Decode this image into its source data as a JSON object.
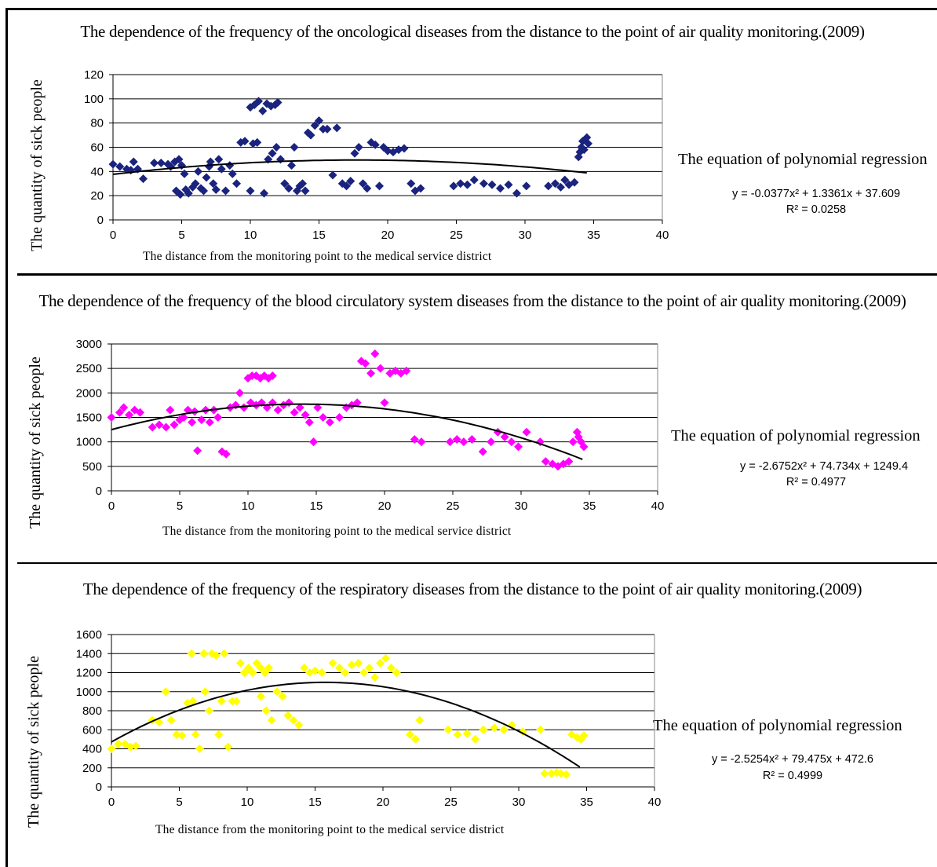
{
  "chart_data": [
    {
      "type": "scatter",
      "title": "The dependence of the frequency of the oncological diseases from the distance to the point of air quality monitoring.(2009)",
      "xlabel": "The distance from the monitoring point to the medical service district",
      "ylabel": "The quantity of sick people",
      "xlim": [
        0,
        40
      ],
      "ylim": [
        0,
        120
      ],
      "xticks": [
        0,
        5,
        10,
        15,
        20,
        25,
        30,
        35,
        40
      ],
      "yticks": [
        0,
        20,
        40,
        60,
        80,
        100,
        120
      ],
      "grid": "horizontal",
      "color": "#1a237e",
      "marker": "diamond",
      "equation_heading": "The equation of polynomial regression",
      "equation": "y = -0.0377x² + 1.3361x + 37.609",
      "r_squared": "R² = 0.0258",
      "trendline": {
        "a": -0.0377,
        "b": 1.3361,
        "c": 37.609,
        "x_range": [
          0,
          34.5
        ]
      },
      "points": [
        [
          0,
          46
        ],
        [
          0.5,
          44
        ],
        [
          1,
          42
        ],
        [
          1.3,
          41
        ],
        [
          1.5,
          48
        ],
        [
          1.8,
          42
        ],
        [
          2.2,
          34
        ],
        [
          3,
          47
        ],
        [
          3.5,
          47
        ],
        [
          4,
          46
        ],
        [
          4.2,
          44
        ],
        [
          4.5,
          48
        ],
        [
          4.8,
          50
        ],
        [
          5,
          45
        ],
        [
          5.2,
          38
        ],
        [
          4.6,
          24
        ],
        [
          4.9,
          21
        ],
        [
          5.3,
          25
        ],
        [
          5.5,
          22
        ],
        [
          5.8,
          27
        ],
        [
          6,
          30
        ],
        [
          6.2,
          40
        ],
        [
          6.4,
          26
        ],
        [
          6.6,
          24
        ],
        [
          6.8,
          35
        ],
        [
          7,
          44
        ],
        [
          7.1,
          48
        ],
        [
          7.3,
          30
        ],
        [
          7.5,
          25
        ],
        [
          7.7,
          50
        ],
        [
          7.9,
          42
        ],
        [
          8.2,
          24
        ],
        [
          8.5,
          45
        ],
        [
          8.7,
          38
        ],
        [
          9,
          30
        ],
        [
          9.3,
          64
        ],
        [
          9.6,
          65
        ],
        [
          10,
          24
        ],
        [
          10.2,
          63
        ],
        [
          10.5,
          64
        ],
        [
          10,
          93
        ],
        [
          10.3,
          95
        ],
        [
          10.6,
          98
        ],
        [
          10.9,
          90
        ],
        [
          11.2,
          96
        ],
        [
          11.5,
          94
        ],
        [
          11.8,
          95
        ],
        [
          12,
          97
        ],
        [
          11,
          22
        ],
        [
          11.3,
          50
        ],
        [
          11.6,
          55
        ],
        [
          11.9,
          60
        ],
        [
          12.2,
          50
        ],
        [
          12.5,
          30
        ],
        [
          12.8,
          26
        ],
        [
          13,
          45
        ],
        [
          13.2,
          60
        ],
        [
          13.4,
          24
        ],
        [
          13.6,
          28
        ],
        [
          13.8,
          30
        ],
        [
          14,
          24
        ],
        [
          14.2,
          72
        ],
        [
          14.4,
          70
        ],
        [
          14.7,
          78
        ],
        [
          15,
          82
        ],
        [
          15.3,
          75
        ],
        [
          15.6,
          75
        ],
        [
          16,
          37
        ],
        [
          16.3,
          76
        ],
        [
          16.7,
          30
        ],
        [
          17,
          28
        ],
        [
          17.3,
          32
        ],
        [
          17.6,
          55
        ],
        [
          17.9,
          60
        ],
        [
          18.2,
          30
        ],
        [
          18.5,
          26
        ],
        [
          18.8,
          64
        ],
        [
          19.1,
          62
        ],
        [
          19.4,
          28
        ],
        [
          19.7,
          60
        ],
        [
          20,
          57
        ],
        [
          20.4,
          56
        ],
        [
          20.8,
          58
        ],
        [
          21.2,
          59
        ],
        [
          21.7,
          30
        ],
        [
          22,
          24
        ],
        [
          22.4,
          26
        ],
        [
          24.8,
          28
        ],
        [
          25.3,
          30
        ],
        [
          25.8,
          29
        ],
        [
          26.3,
          33
        ],
        [
          27,
          30
        ],
        [
          27.6,
          29
        ],
        [
          28.2,
          26
        ],
        [
          28.8,
          29
        ],
        [
          29.4,
          22
        ],
        [
          30.1,
          28
        ],
        [
          31.7,
          28
        ],
        [
          32.2,
          30
        ],
        [
          32.6,
          27
        ],
        [
          32.9,
          33
        ],
        [
          33.2,
          29
        ],
        [
          33.6,
          31
        ],
        [
          33.9,
          52
        ],
        [
          34.1,
          60
        ],
        [
          34.3,
          58
        ],
        [
          34.5,
          68
        ],
        [
          34.2,
          65
        ],
        [
          34.6,
          63
        ],
        [
          34.0,
          56
        ]
      ]
    },
    {
      "type": "scatter",
      "title": "The dependence of the frequency of the blood circulatory system diseases from the distance to the point of air quality monitoring.(2009)",
      "xlabel": "The distance from the monitoring point to the medical service district",
      "ylabel": "The quantity of sick people",
      "xlim": [
        0,
        40
      ],
      "ylim": [
        0,
        3000
      ],
      "xticks": [
        0,
        5,
        10,
        15,
        20,
        25,
        30,
        35,
        40
      ],
      "yticks": [
        0,
        500,
        1000,
        1500,
        2000,
        2500,
        3000
      ],
      "grid": "horizontal",
      "color": "#ff00ff",
      "marker": "diamond",
      "equation_heading": "The equation of polynomial regression",
      "equation": "y = -2.6752x² + 74.734x + 1249.4",
      "r_squared": "R² = 0.4977",
      "trendline": {
        "a": -2.6752,
        "b": 74.734,
        "c": 1249.4,
        "x_range": [
          0,
          34.5
        ]
      },
      "points": [
        [
          0,
          1500
        ],
        [
          0.6,
          1600
        ],
        [
          0.9,
          1700
        ],
        [
          1.3,
          1550
        ],
        [
          1.7,
          1650
        ],
        [
          2.1,
          1600
        ],
        [
          3,
          1300
        ],
        [
          3.5,
          1350
        ],
        [
          4,
          1300
        ],
        [
          4.3,
          1650
        ],
        [
          4.6,
          1350
        ],
        [
          5,
          1450
        ],
        [
          5.3,
          1500
        ],
        [
          5.6,
          1650
        ],
        [
          5.9,
          1400
        ],
        [
          6.1,
          1620
        ],
        [
          6.3,
          820
        ],
        [
          6.6,
          1450
        ],
        [
          6.9,
          1650
        ],
        [
          7.2,
          1400
        ],
        [
          7.5,
          1650
        ],
        [
          7.8,
          1500
        ],
        [
          8.1,
          800
        ],
        [
          8.4,
          750
        ],
        [
          8.7,
          1700
        ],
        [
          9.1,
          1750
        ],
        [
          9.4,
          2000
        ],
        [
          9.7,
          1700
        ],
        [
          10,
          2300
        ],
        [
          10.3,
          2350
        ],
        [
          10.6,
          2350
        ],
        [
          10.9,
          2300
        ],
        [
          11.2,
          2350
        ],
        [
          11.5,
          2300
        ],
        [
          11.8,
          2350
        ],
        [
          10.2,
          1800
        ],
        [
          10.6,
          1750
        ],
        [
          11,
          1800
        ],
        [
          11.4,
          1700
        ],
        [
          11.8,
          1800
        ],
        [
          12.2,
          1650
        ],
        [
          12.6,
          1750
        ],
        [
          13,
          1800
        ],
        [
          13.4,
          1600
        ],
        [
          13.8,
          1700
        ],
        [
          14.2,
          1550
        ],
        [
          14.5,
          1400
        ],
        [
          14.8,
          1000
        ],
        [
          15.1,
          1700
        ],
        [
          15.5,
          1500
        ],
        [
          16,
          1400
        ],
        [
          16.7,
          1500
        ],
        [
          17.2,
          1700
        ],
        [
          17.6,
          1750
        ],
        [
          18,
          1800
        ],
        [
          18.3,
          2650
        ],
        [
          18.6,
          2600
        ],
        [
          19,
          2400
        ],
        [
          19.3,
          2800
        ],
        [
          19.7,
          2500
        ],
        [
          20,
          1800
        ],
        [
          20.4,
          2400
        ],
        [
          20.8,
          2450
        ],
        [
          21.2,
          2400
        ],
        [
          21.6,
          2450
        ],
        [
          22.2,
          1050
        ],
        [
          22.7,
          1000
        ],
        [
          24.8,
          1000
        ],
        [
          25.3,
          1050
        ],
        [
          25.8,
          1000
        ],
        [
          26.4,
          1050
        ],
        [
          27.2,
          800
        ],
        [
          27.8,
          1000
        ],
        [
          28.3,
          1200
        ],
        [
          28.8,
          1100
        ],
        [
          29.3,
          1000
        ],
        [
          29.8,
          900
        ],
        [
          30.4,
          1200
        ],
        [
          31.4,
          1000
        ],
        [
          31.8,
          600
        ],
        [
          32.3,
          550
        ],
        [
          32.7,
          500
        ],
        [
          33.1,
          550
        ],
        [
          33.5,
          600
        ],
        [
          33.8,
          1000
        ],
        [
          34.1,
          1200
        ],
        [
          34.4,
          1000
        ],
        [
          34.6,
          900
        ],
        [
          34.2,
          1100
        ]
      ]
    },
    {
      "type": "scatter",
      "title": "The dependence of the frequency of the respiratory diseases from the distance to the point of air quality monitoring.(2009)",
      "xlabel": "The distance from the monitoring point to the medical service district",
      "ylabel": "The quantity of sick people",
      "xlim": [
        0,
        40
      ],
      "ylim": [
        0,
        1600
      ],
      "xticks": [
        0,
        5,
        10,
        15,
        20,
        25,
        30,
        35,
        40
      ],
      "yticks": [
        0,
        200,
        400,
        600,
        800,
        1000,
        1200,
        1400,
        1600
      ],
      "grid": "horizontal",
      "color": "#ffff00",
      "marker": "diamond",
      "equation_heading": "The equation of polynomial regression",
      "equation": "y = -2.5254x² + 79.475x + 472.6",
      "r_squared": "R² = 0.4999",
      "trendline": {
        "a": -2.5254,
        "b": 79.475,
        "c": 472.6,
        "x_range": [
          0,
          34.5
        ]
      },
      "points": [
        [
          0,
          400
        ],
        [
          0.5,
          450
        ],
        [
          1,
          450
        ],
        [
          1.4,
          420
        ],
        [
          1.8,
          430
        ],
        [
          3,
          700
        ],
        [
          3.5,
          680
        ],
        [
          4,
          1000
        ],
        [
          4.4,
          700
        ],
        [
          4.8,
          550
        ],
        [
          5.2,
          540
        ],
        [
          5.6,
          880
        ],
        [
          6,
          900
        ],
        [
          5.9,
          1400
        ],
        [
          6.2,
          550
        ],
        [
          6.5,
          400
        ],
        [
          6.8,
          1400
        ],
        [
          6.9,
          1000
        ],
        [
          7.2,
          800
        ],
        [
          7.4,
          1400
        ],
        [
          7.7,
          1380
        ],
        [
          7.9,
          550
        ],
        [
          8.1,
          900
        ],
        [
          8.3,
          1400
        ],
        [
          8.6,
          420
        ],
        [
          8.9,
          900
        ],
        [
          9.2,
          900
        ],
        [
          9.5,
          1300
        ],
        [
          9.8,
          1200
        ],
        [
          10.1,
          1250
        ],
        [
          10.4,
          1200
        ],
        [
          10.7,
          1300
        ],
        [
          11,
          1250
        ],
        [
          11.3,
          1200
        ],
        [
          11.6,
          1250
        ],
        [
          11,
          950
        ],
        [
          11.4,
          800
        ],
        [
          11.8,
          700
        ],
        [
          12.2,
          1000
        ],
        [
          12.6,
          950
        ],
        [
          13,
          750
        ],
        [
          13.4,
          700
        ],
        [
          13.8,
          650
        ],
        [
          14.2,
          1250
        ],
        [
          14.6,
          1200
        ],
        [
          15,
          1220
        ],
        [
          15.5,
          1200
        ],
        [
          16.3,
          1300
        ],
        [
          16.8,
          1250
        ],
        [
          17.2,
          1200
        ],
        [
          17.7,
          1280
        ],
        [
          18.2,
          1300
        ],
        [
          18.6,
          1200
        ],
        [
          19,
          1250
        ],
        [
          19.4,
          1150
        ],
        [
          19.8,
          1300
        ],
        [
          20.2,
          1350
        ],
        [
          20.6,
          1250
        ],
        [
          21,
          1200
        ],
        [
          22,
          550
        ],
        [
          22.4,
          500
        ],
        [
          22.7,
          700
        ],
        [
          24.8,
          600
        ],
        [
          25.5,
          550
        ],
        [
          26.2,
          560
        ],
        [
          26.8,
          500
        ],
        [
          27.4,
          600
        ],
        [
          28.2,
          620
        ],
        [
          28.9,
          600
        ],
        [
          29.5,
          650
        ],
        [
          30.3,
          580
        ],
        [
          31.6,
          600
        ],
        [
          31.9,
          140
        ],
        [
          32.4,
          140
        ],
        [
          32.8,
          150
        ],
        [
          33.1,
          140
        ],
        [
          33.5,
          130
        ],
        [
          33.9,
          550
        ],
        [
          34.3,
          520
        ],
        [
          34.6,
          500
        ],
        [
          34.8,
          540
        ]
      ]
    }
  ]
}
